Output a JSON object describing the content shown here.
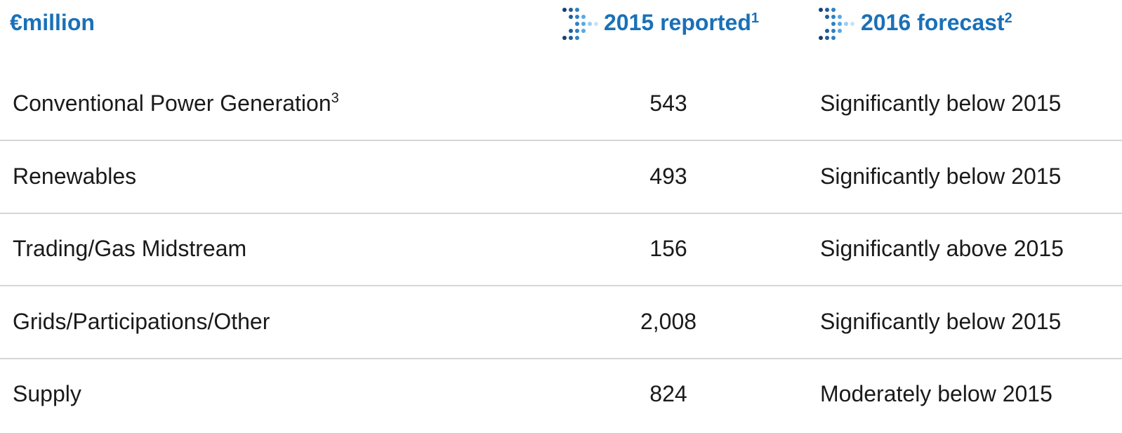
{
  "header": {
    "unit": "€million",
    "columns": [
      {
        "title": "2015 reported",
        "note": "1"
      },
      {
        "title": "2016 forecast",
        "note": "2"
      }
    ]
  },
  "table": {
    "rows": [
      {
        "label": "Conventional Power Generation",
        "note": "3",
        "reported": "543",
        "forecast": "Significantly below 2015"
      },
      {
        "label": "Renewables",
        "reported": "493",
        "forecast": "Significantly below 2015"
      },
      {
        "label": "Trading/Gas Midstream",
        "reported": "156",
        "forecast": "Significantly above 2015"
      },
      {
        "label": "Grids/Participations/Other",
        "reported": "2,008",
        "forecast": "Significantly below 2015"
      },
      {
        "label": "Supply",
        "reported": "824",
        "forecast": "Moderately below 2015"
      }
    ]
  }
}
